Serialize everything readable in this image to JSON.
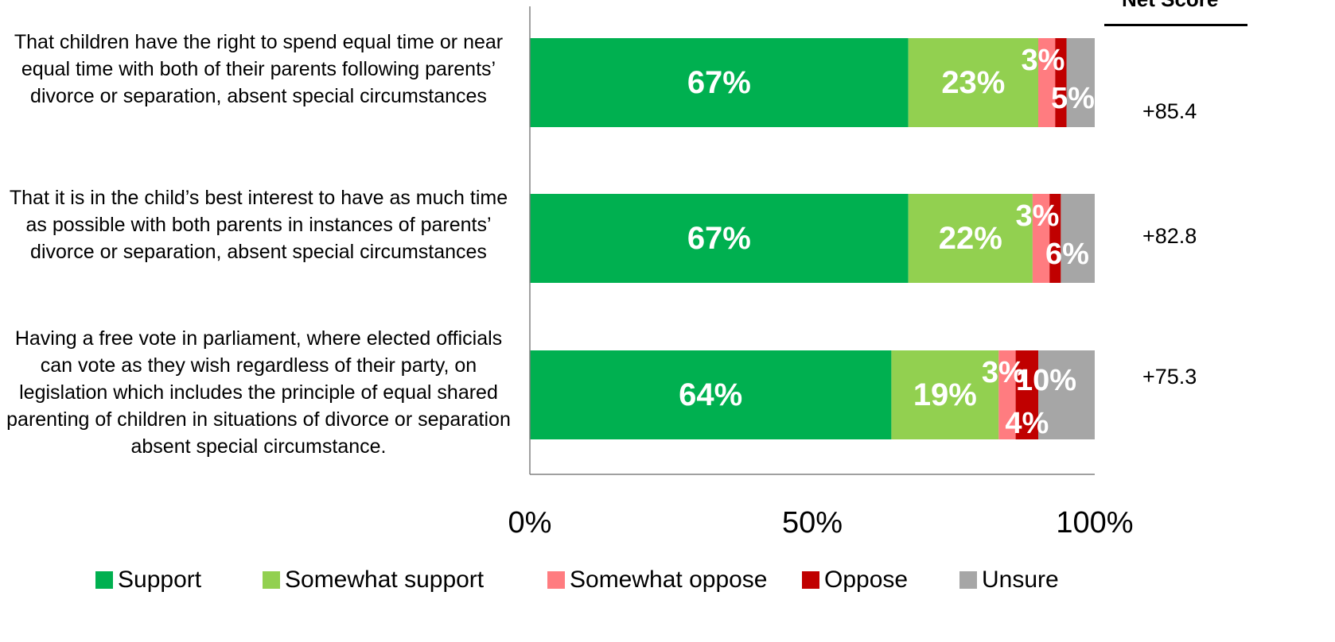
{
  "chart_data": {
    "type": "bar",
    "orientation": "horizontal",
    "stacked": true,
    "categories": [
      "That children have the right to spend equal time or near equal time with both of their parents following parents’ divorce or separation, absent special circumstances",
      "That it is in the child’s best interest to have as much time as possible with both parents in instances of parents’ divorce or separation, absent special circumstances",
      "Having a free vote in parliament, where elected officials can vote as they wish regardless of their party, on legislation which includes the principle of equal shared parenting of children in situations of divorce or separation absent special circumstance."
    ],
    "series": [
      {
        "name": "Support",
        "color": "#00B050",
        "values": [
          67,
          67,
          64
        ],
        "labels": [
          "67%",
          "67%",
          "64%"
        ]
      },
      {
        "name": "Somewhat support",
        "color": "#92D050",
        "values": [
          23,
          22,
          19
        ],
        "labels": [
          "23%",
          "22%",
          "19%"
        ]
      },
      {
        "name": "Somewhat oppose",
        "color": "#FF7C80",
        "values": [
          3,
          3,
          3
        ],
        "labels": [
          "3%",
          "3%",
          "3%"
        ]
      },
      {
        "name": "Oppose",
        "color": "#C00000",
        "values": [
          2,
          2,
          4
        ],
        "labels": [
          "",
          "",
          "4%"
        ]
      },
      {
        "name": "Unsure",
        "color": "#A6A6A6",
        "values": [
          5,
          6,
          10
        ],
        "labels": [
          "5%",
          "6%",
          "10%"
        ]
      }
    ],
    "xlim": [
      0,
      100
    ],
    "xticks": [
      "0%",
      "50%",
      "100%"
    ],
    "grid": false,
    "legend_position": "bottom",
    "net_score": {
      "header": "Net Score",
      "values": [
        "+85.4",
        "+82.8",
        "+75.3"
      ]
    }
  }
}
